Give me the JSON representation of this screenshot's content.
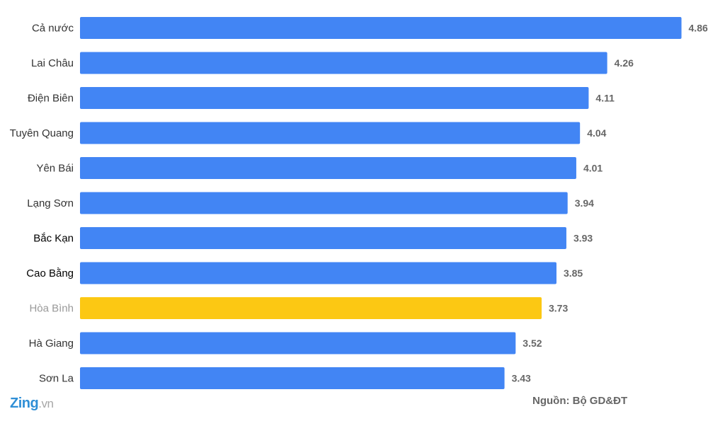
{
  "chart_data": {
    "type": "bar",
    "orientation": "horizontal",
    "categories": [
      "Cả nước",
      "Lai Châu",
      "Điện Biên",
      "Tuyên Quang",
      "Yên Bái",
      "Lạng Sơn",
      "Bắc Kạn",
      "Cao Bằng",
      "Hòa Bình",
      "Hà Giang",
      "Sơn La"
    ],
    "values": [
      4.86,
      4.26,
      4.11,
      4.04,
      4.01,
      3.94,
      3.93,
      3.85,
      3.73,
      3.52,
      3.43
    ],
    "value_labels": [
      "4.86",
      "4.26",
      "4.11",
      "4.04",
      "4.01",
      "3.94",
      "3.93",
      "3.85",
      "3.73",
      "3.52",
      "3.43"
    ],
    "highlight_category": "Hòa Bình",
    "colors": {
      "bar": "#4285f4",
      "highlight": "#fcc813"
    },
    "label_colors": {
      "default": "#333333",
      "Bắc Kạn": "#000000",
      "Cao Bằng": "#000000",
      "Hòa Bình": "#999999"
    },
    "xlim": [
      0,
      5
    ],
    "grid": false,
    "legend": "none"
  },
  "source_text": "Nguồn: Bộ GD&ĐT",
  "logo": {
    "brand": "Zing",
    "tld": ".vn"
  }
}
